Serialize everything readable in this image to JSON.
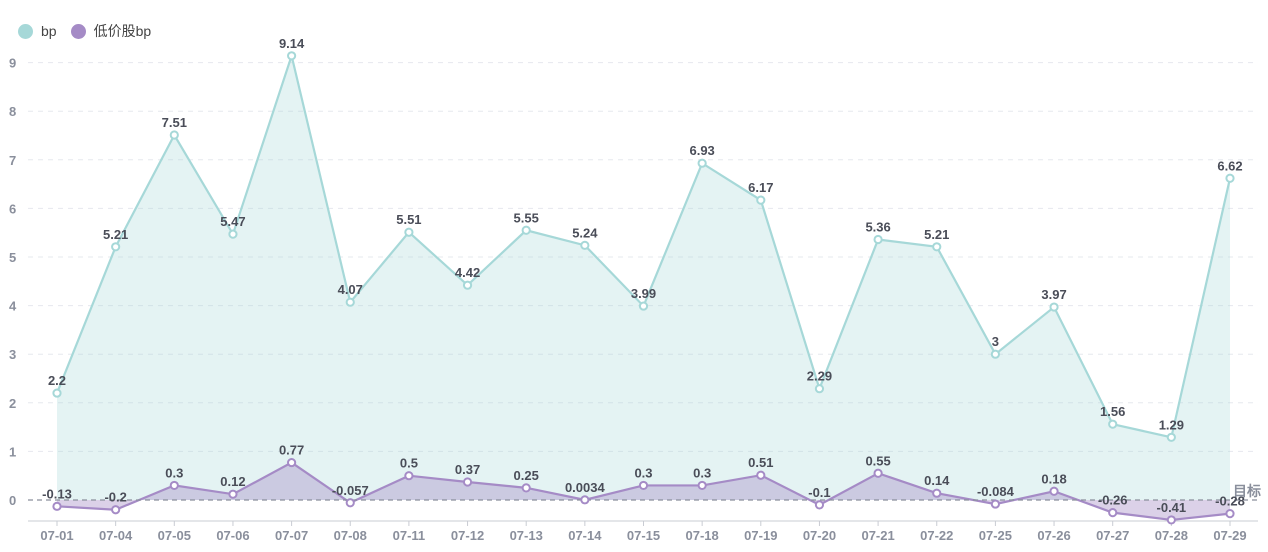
{
  "chart_data": {
    "type": "line",
    "categories": [
      "07-01",
      "07-04",
      "07-05",
      "07-06",
      "07-07",
      "07-08",
      "07-11",
      "07-12",
      "07-13",
      "07-14",
      "07-15",
      "07-18",
      "07-19",
      "07-20",
      "07-21",
      "07-22",
      "07-25",
      "07-26",
      "07-27",
      "07-28",
      "07-29"
    ],
    "series": [
      {
        "name": "bp",
        "color": "#a6d8d8",
        "values": [
          2.2,
          5.21,
          7.51,
          5.47,
          9.14,
          4.07,
          5.51,
          4.42,
          5.55,
          5.24,
          3.99,
          6.93,
          6.17,
          2.29,
          5.36,
          5.21,
          3,
          3.97,
          1.56,
          1.29,
          6.62
        ],
        "labels": [
          "2.2",
          "5.21",
          "7.51",
          "5.47",
          "9.14",
          "4.07",
          "5.51",
          "4.42",
          "5.55",
          "5.24",
          "3.99",
          "6.93",
          "6.17",
          "2.29",
          "5.36",
          "5.21",
          "3",
          "3.97",
          "1.56",
          "1.29",
          "6.62"
        ]
      },
      {
        "name": "低价股bp",
        "color": "#a58bc6",
        "values": [
          -0.13,
          -0.2,
          0.3,
          0.12,
          0.77,
          -0.057,
          0.5,
          0.37,
          0.25,
          0.0034,
          0.3,
          0.3,
          0.51,
          -0.1,
          0.55,
          0.14,
          -0.084,
          0.18,
          -0.26,
          -0.41,
          -0.28
        ],
        "labels": [
          "-0.13",
          "-0.2",
          "0.3",
          "0.12",
          "0.77",
          "-0.057",
          "0.5",
          "0.37",
          "0.25",
          "0.0034",
          "0.3",
          "0.3",
          "0.51",
          "-0.1",
          "0.55",
          "0.14",
          "-0.084",
          "0.18",
          "-0.26",
          "-0.41",
          "-0.28"
        ]
      }
    ],
    "y_ticks": [
      0,
      1,
      2,
      3,
      4,
      5,
      6,
      7,
      8,
      9
    ],
    "ylim": [
      -0.45,
      9.5
    ],
    "target": {
      "label": "目标",
      "value": 0
    },
    "grid": true,
    "legend_position": "top-left"
  }
}
